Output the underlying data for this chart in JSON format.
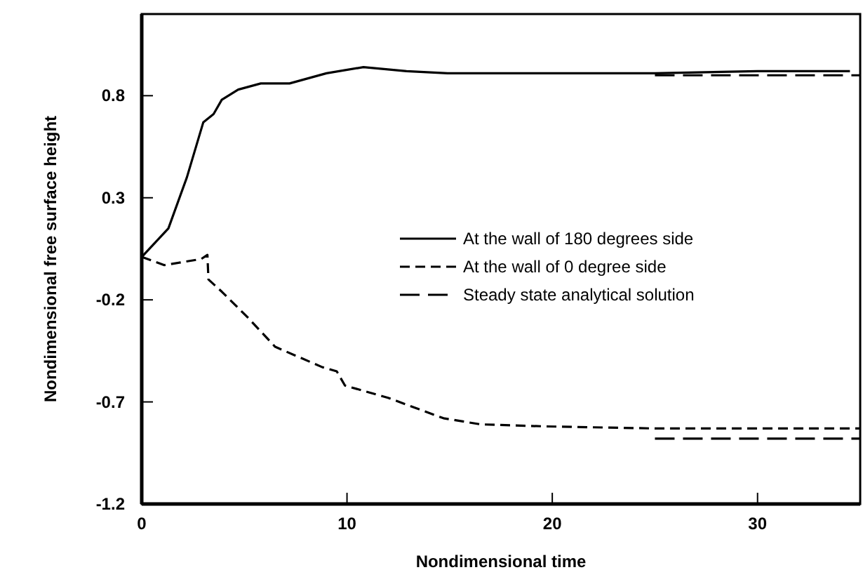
{
  "chart_data": {
    "type": "line",
    "xlabel": "Nondimensional time",
    "ylabel": "Nondimensional free surface height",
    "xlim": [
      0,
      35
    ],
    "xticks": [
      0,
      10,
      20,
      30
    ],
    "ylim": [
      -1.2,
      1.2
    ],
    "yticks": [
      0.8,
      0.3,
      -0.2,
      -0.7,
      -1.2
    ],
    "grid": false,
    "legend": "right",
    "marker": "none",
    "series": [
      {
        "name": "At the wall of 180 degrees side",
        "color": "#000000",
        "line_style": "solid",
        "x": [
          0,
          1.3,
          2.2,
          3.0,
          3.5,
          3.9,
          4.7,
          5.8,
          7.2,
          9.0,
          10.8,
          12.9,
          14.9,
          20,
          25,
          30,
          34.5
        ],
        "values": [
          0.01,
          0.15,
          0.4,
          0.67,
          0.71,
          0.78,
          0.83,
          0.86,
          0.86,
          0.91,
          0.94,
          0.92,
          0.91,
          0.91,
          0.91,
          0.92,
          0.92
        ]
      },
      {
        "name": "At the wall of 0 degree side",
        "color": "#000000",
        "line_style": "dashed",
        "x": [
          0,
          1.1,
          2.9,
          3.2,
          3.25,
          3.9,
          5.2,
          6.5,
          8.8,
          9.5,
          9.9,
          12.0,
          14.7,
          16.5,
          19.7,
          25,
          30,
          35
        ],
        "values": [
          0.01,
          -0.03,
          0.0,
          0.02,
          -0.1,
          -0.16,
          -0.29,
          -0.43,
          -0.53,
          -0.55,
          -0.62,
          -0.68,
          -0.78,
          -0.81,
          -0.82,
          -0.83,
          -0.83,
          -0.83
        ]
      },
      {
        "name": "Steady state analytical solution",
        "color": "#000000",
        "line_style": "longdash",
        "x": [
          25,
          35
        ],
        "values": [
          0.9,
          0.9
        ]
      },
      {
        "color": "#000000",
        "line_style": "longdash",
        "x": [
          25,
          35
        ],
        "values": [
          -0.88,
          -0.88
        ]
      }
    ]
  }
}
